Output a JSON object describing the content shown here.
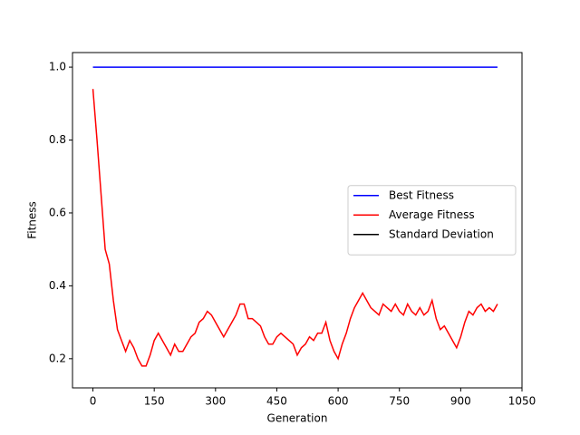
{
  "chart_data": {
    "type": "line",
    "xlabel": "Generation",
    "ylabel": "Fitness",
    "x": [
      0,
      10,
      20,
      30,
      40,
      50,
      60,
      70,
      80,
      90,
      100,
      110,
      120,
      130,
      140,
      150,
      160,
      170,
      180,
      190,
      200,
      210,
      220,
      230,
      240,
      250,
      260,
      270,
      280,
      290,
      300,
      310,
      320,
      330,
      340,
      350,
      360,
      370,
      380,
      390,
      400,
      410,
      420,
      430,
      440,
      450,
      460,
      470,
      480,
      490,
      500,
      510,
      520,
      530,
      540,
      550,
      560,
      570,
      580,
      590,
      600,
      610,
      620,
      630,
      640,
      650,
      660,
      670,
      680,
      690,
      700,
      710,
      720,
      730,
      740,
      750,
      760,
      770,
      780,
      790,
      800,
      810,
      820,
      830,
      840,
      850,
      860,
      870,
      880,
      890,
      900,
      910,
      920,
      930,
      940,
      950,
      960,
      970,
      980,
      990
    ],
    "series": [
      {
        "name": "Best Fitness",
        "color": "#0000ff",
        "values": [
          1,
          1,
          1,
          1,
          1,
          1,
          1,
          1,
          1,
          1,
          1,
          1,
          1,
          1,
          1,
          1,
          1,
          1,
          1,
          1,
          1,
          1,
          1,
          1,
          1,
          1,
          1,
          1,
          1,
          1,
          1,
          1,
          1,
          1,
          1,
          1,
          1,
          1,
          1,
          1,
          1,
          1,
          1,
          1,
          1,
          1,
          1,
          1,
          1,
          1,
          1,
          1,
          1,
          1,
          1,
          1,
          1,
          1,
          1,
          1,
          1,
          1,
          1,
          1,
          1,
          1,
          1,
          1,
          1,
          1,
          1,
          1,
          1,
          1,
          1,
          1,
          1,
          1,
          1,
          1,
          1,
          1,
          1,
          1,
          1,
          1,
          1,
          1,
          1,
          1,
          1,
          1,
          1,
          1,
          1,
          1,
          1,
          1,
          1,
          1
        ]
      },
      {
        "name": "Average Fitness",
        "color": "#ff0000",
        "values": [
          0.94,
          0.8,
          0.65,
          0.5,
          0.46,
          0.36,
          0.28,
          0.25,
          0.22,
          0.25,
          0.23,
          0.2,
          0.18,
          0.18,
          0.21,
          0.25,
          0.27,
          0.25,
          0.23,
          0.21,
          0.24,
          0.22,
          0.22,
          0.24,
          0.26,
          0.27,
          0.3,
          0.31,
          0.33,
          0.32,
          0.3,
          0.28,
          0.26,
          0.28,
          0.3,
          0.32,
          0.35,
          0.35,
          0.31,
          0.31,
          0.3,
          0.29,
          0.26,
          0.24,
          0.24,
          0.26,
          0.27,
          0.26,
          0.25,
          0.24,
          0.21,
          0.23,
          0.24,
          0.26,
          0.25,
          0.27,
          0.27,
          0.3,
          0.25,
          0.22,
          0.2,
          0.24,
          0.27,
          0.31,
          0.34,
          0.36,
          0.38,
          0.36,
          0.34,
          0.33,
          0.32,
          0.35,
          0.34,
          0.33,
          0.35,
          0.33,
          0.32,
          0.35,
          0.33,
          0.32,
          0.34,
          0.32,
          0.33,
          0.36,
          0.31,
          0.28,
          0.29,
          0.27,
          0.25,
          0.23,
          0.26,
          0.3,
          0.33,
          0.32,
          0.34,
          0.35,
          0.33,
          0.34,
          0.33,
          0.35
        ]
      },
      {
        "name": "Standard Deviation",
        "color": "#000000",
        "values": [
          null,
          null,
          null,
          null,
          null,
          null,
          null,
          null,
          null,
          null,
          null,
          null,
          null,
          null,
          null,
          null,
          null,
          null,
          null,
          null,
          null,
          null,
          null,
          null,
          null,
          null,
          null,
          null,
          null,
          null,
          null,
          null,
          null,
          null,
          null,
          null,
          null,
          null,
          null,
          null,
          null,
          null,
          null,
          null,
          null,
          null,
          null,
          null,
          null,
          null,
          null,
          null,
          null,
          null,
          null,
          null,
          null,
          null,
          null,
          null,
          null,
          null,
          null,
          null,
          null,
          null,
          null,
          null,
          null,
          null,
          null,
          null,
          null,
          null,
          null,
          null,
          null,
          null,
          null,
          null,
          null,
          null,
          null,
          null,
          null,
          null,
          null,
          null,
          null,
          null,
          null,
          null,
          null,
          null,
          null,
          null,
          null,
          null,
          null,
          null
        ]
      }
    ],
    "xlim": [
      -50,
      1050
    ],
    "xticks": [
      0,
      150,
      300,
      450,
      600,
      750,
      900,
      1050
    ],
    "ylim": [
      0.12,
      1.04
    ],
    "yticks": [
      0.2,
      0.4,
      0.6,
      0.8,
      {
        "value": 1,
        "label": "1.0"
      }
    ],
    "legend": "center right"
  }
}
